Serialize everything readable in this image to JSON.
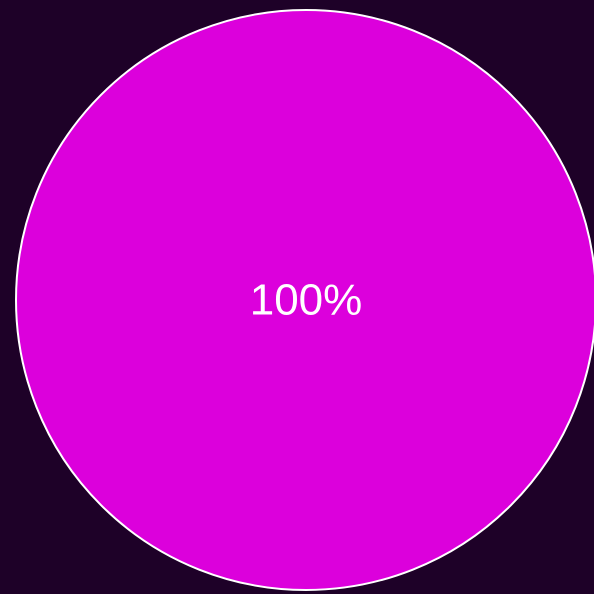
{
  "colors": {
    "background": "#1e0128",
    "slice": "#dc00dc",
    "slice_border": "#ffffff",
    "label": "#ffffff"
  },
  "chart_data": {
    "type": "pie",
    "categories": [
      ""
    ],
    "values": [
      100
    ],
    "labels": [
      "100%"
    ],
    "legend": "none"
  }
}
